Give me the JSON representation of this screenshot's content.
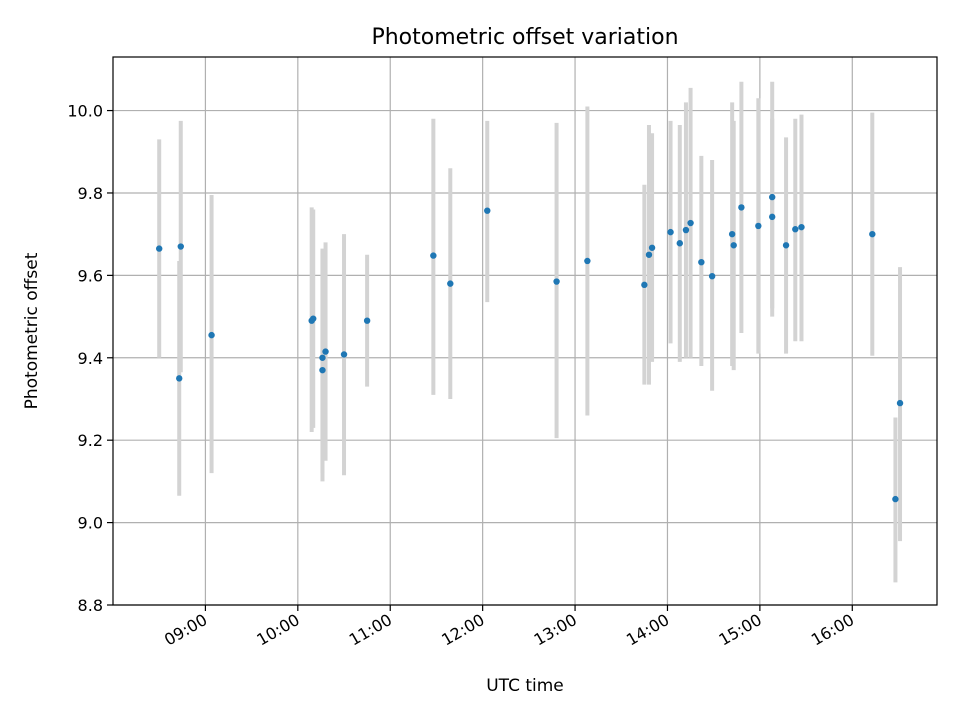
{
  "chart_data": {
    "type": "scatter",
    "title": "Photometric offset variation",
    "xlabel": "UTC time",
    "ylabel": "Photometric offset",
    "grid": true,
    "x_ticks": [
      "09:00",
      "10:00",
      "11:00",
      "12:00",
      "13:00",
      "14:00",
      "15:00",
      "16:00"
    ],
    "x_range": [
      "08:00",
      "16:55"
    ],
    "y_ticks": [
      "8.8",
      "9.0",
      "9.2",
      "9.4",
      "9.6",
      "9.8",
      "10.0"
    ],
    "ylim": [
      8.8,
      10.13
    ],
    "colors": {
      "point": "#1f77b4",
      "errorbar": "#d3d3d3",
      "grid": "#b0b0b0"
    },
    "points": [
      {
        "x": "08:30",
        "y": 9.665,
        "lo": 9.4,
        "hi": 9.93
      },
      {
        "x": "08:43",
        "y": 9.35,
        "lo": 9.065,
        "hi": 9.635
      },
      {
        "x": "08:44",
        "y": 9.67,
        "lo": 9.365,
        "hi": 9.975
      },
      {
        "x": "09:04",
        "y": 9.455,
        "lo": 9.12,
        "hi": 9.795
      },
      {
        "x": "10:09",
        "y": 9.49,
        "lo": 9.22,
        "hi": 9.765
      },
      {
        "x": "10:10",
        "y": 9.495,
        "lo": 9.23,
        "hi": 9.76
      },
      {
        "x": "10:16",
        "y": 9.37,
        "lo": 9.1,
        "hi": 9.665
      },
      {
        "x": "10:16",
        "y": 9.4,
        "lo": 9.12,
        "hi": 9.66
      },
      {
        "x": "10:18",
        "y": 9.415,
        "lo": 9.15,
        "hi": 9.68
      },
      {
        "x": "10:30",
        "y": 9.408,
        "lo": 9.115,
        "hi": 9.7
      },
      {
        "x": "10:45",
        "y": 9.49,
        "lo": 9.33,
        "hi": 9.65
      },
      {
        "x": "11:28",
        "y": 9.648,
        "lo": 9.31,
        "hi": 9.98
      },
      {
        "x": "11:39",
        "y": 9.58,
        "lo": 9.3,
        "hi": 9.86
      },
      {
        "x": "12:03",
        "y": 9.757,
        "lo": 9.535,
        "hi": 9.975
      },
      {
        "x": "12:48",
        "y": 9.585,
        "lo": 9.205,
        "hi": 9.97
      },
      {
        "x": "13:08",
        "y": 9.635,
        "lo": 9.26,
        "hi": 10.01
      },
      {
        "x": "13:45",
        "y": 9.577,
        "lo": 9.335,
        "hi": 9.82
      },
      {
        "x": "13:48",
        "y": 9.65,
        "lo": 9.335,
        "hi": 9.965
      },
      {
        "x": "13:50",
        "y": 9.667,
        "lo": 9.39,
        "hi": 9.945
      },
      {
        "x": "14:02",
        "y": 9.705,
        "lo": 9.435,
        "hi": 9.975
      },
      {
        "x": "14:08",
        "y": 9.678,
        "lo": 9.39,
        "hi": 9.965
      },
      {
        "x": "14:12",
        "y": 9.71,
        "lo": 9.4,
        "hi": 10.02
      },
      {
        "x": "14:15",
        "y": 9.727,
        "lo": 9.4,
        "hi": 10.055
      },
      {
        "x": "14:22",
        "y": 9.632,
        "lo": 9.38,
        "hi": 9.89
      },
      {
        "x": "14:29",
        "y": 9.598,
        "lo": 9.32,
        "hi": 9.88
      },
      {
        "x": "14:42",
        "y": 9.7,
        "lo": 9.38,
        "hi": 10.02
      },
      {
        "x": "14:43",
        "y": 9.673,
        "lo": 9.37,
        "hi": 9.975
      },
      {
        "x": "14:48",
        "y": 9.765,
        "lo": 9.46,
        "hi": 10.07
      },
      {
        "x": "14:59",
        "y": 9.72,
        "lo": 9.41,
        "hi": 10.03
      },
      {
        "x": "15:08",
        "y": 9.79,
        "lo": 9.52,
        "hi": 10.07
      },
      {
        "x": "15:08",
        "y": 9.742,
        "lo": 9.5,
        "hi": 9.98
      },
      {
        "x": "15:17",
        "y": 9.673,
        "lo": 9.41,
        "hi": 9.935
      },
      {
        "x": "15:23",
        "y": 9.712,
        "lo": 9.44,
        "hi": 9.98
      },
      {
        "x": "15:27",
        "y": 9.717,
        "lo": 9.44,
        "hi": 9.99
      },
      {
        "x": "16:13",
        "y": 9.7,
        "lo": 9.405,
        "hi": 9.995
      },
      {
        "x": "16:28",
        "y": 9.057,
        "lo": 8.855,
        "hi": 9.255
      },
      {
        "x": "16:31",
        "y": 9.29,
        "lo": 8.955,
        "hi": 9.62
      }
    ]
  }
}
